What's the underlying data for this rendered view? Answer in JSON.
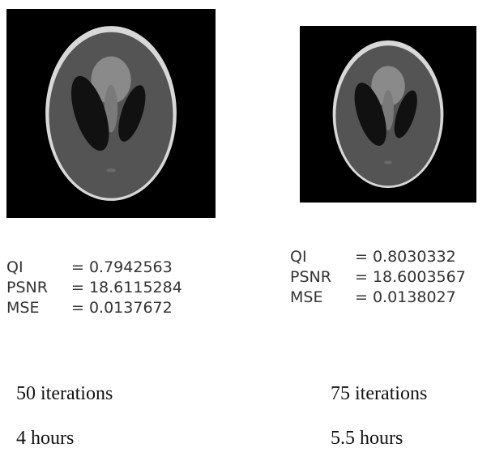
{
  "panels": [
    {
      "metrics": [
        {
          "label": "QI",
          "value": "= 0.7942563"
        },
        {
          "label": "PSNR",
          "value": "= 18.6115284"
        },
        {
          "label": "MSE",
          "value": "= 0.0137672"
        }
      ],
      "iterations": "50 iterations",
      "time": "4 hours"
    },
    {
      "metrics": [
        {
          "label": "QI",
          "value": "= 0.8030332"
        },
        {
          "label": "PSNR",
          "value": "= 18.6003567"
        },
        {
          "label": "MSE",
          "value": "= 0.0138027"
        }
      ],
      "iterations": "75 iterations",
      "time": "5.5 hours"
    }
  ]
}
